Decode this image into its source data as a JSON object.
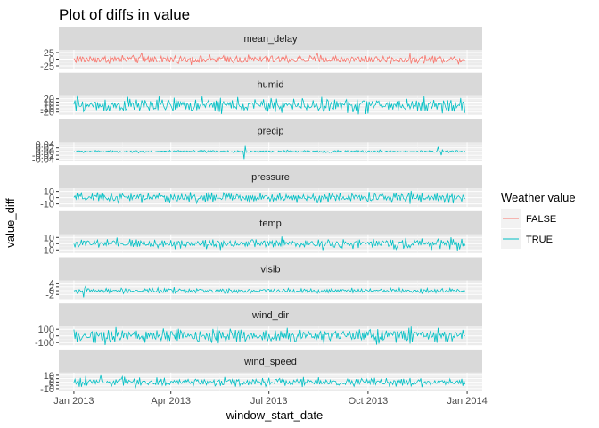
{
  "chart_data": {
    "type": "line",
    "title": "Plot of diffs in value",
    "xlabel": "window_start_date",
    "ylabel": "value_diff",
    "x_tick_labels": [
      "Jan 2013",
      "Apr 2013",
      "Jul 2013",
      "Oct 2013",
      "Jan 2014"
    ],
    "x_ticks": [
      "2013-01-01",
      "2013-04-01",
      "2013-07-01",
      "2013-10-01",
      "2014-01-01"
    ],
    "xlim": [
      "2012-12-18",
      "2014-01-15"
    ],
    "x_start": "2013-01-01",
    "x_end": "2013-12-30",
    "legend": {
      "title": "Weather value",
      "placement": "right",
      "entries": [
        {
          "label": "FALSE",
          "color": "#F8766D"
        },
        {
          "label": "TRUE",
          "color": "#00BFC4"
        }
      ]
    },
    "grid": true,
    "panels": [
      {
        "label": "mean_delay",
        "group": "FALSE",
        "ylim": [
          -35,
          35
        ],
        "y_ticks": [
          -25,
          0,
          25
        ],
        "y_tick_labels": [
          "-25",
          "0",
          "25"
        ],
        "amplitude": 10,
        "spikes": [
          {
            "date": "2013-03-05",
            "value": -32
          },
          {
            "date": "2013-03-05",
            "value": 25
          },
          {
            "date": "2013-08-15",
            "value": 22
          }
        ]
      },
      {
        "label": "humid",
        "group": "TRUE",
        "ylim": [
          -28,
          28
        ],
        "y_ticks": [
          -20,
          -10,
          0,
          10,
          20
        ],
        "y_tick_labels": [
          "-20",
          "-10",
          "0",
          "10",
          "20"
        ],
        "amplitude": 14,
        "spikes": [
          {
            "date": "2013-01-05",
            "value": 18
          }
        ]
      },
      {
        "label": "precip",
        "group": "TRUE",
        "ylim": [
          -0.05,
          0.05
        ],
        "y_ticks": [
          -0.04,
          -0.02,
          0,
          0.02,
          0.04
        ],
        "y_tick_labels": [
          "-0.04",
          "-0.02",
          "0.00",
          "0.02",
          "0.04"
        ],
        "amplitude": 0.004,
        "spikes": [
          {
            "date": "2013-06-08",
            "value": -0.04
          },
          {
            "date": "2013-06-09",
            "value": 0.03
          },
          {
            "date": "2013-12-05",
            "value": 0.025
          },
          {
            "date": "2013-12-08",
            "value": -0.02
          }
        ]
      },
      {
        "label": "pressure",
        "group": "TRUE",
        "ylim": [
          -15,
          15
        ],
        "y_ticks": [
          -10,
          0,
          10
        ],
        "y_tick_labels": [
          "-10",
          "0",
          "10"
        ],
        "amplitude": 5,
        "spikes": [
          {
            "date": "2013-11-10",
            "value": 11
          }
        ]
      },
      {
        "label": "temp",
        "group": "TRUE",
        "ylim": [
          -15,
          15
        ],
        "y_ticks": [
          -10,
          0,
          10
        ],
        "y_tick_labels": [
          "-10",
          "0",
          "10"
        ],
        "amplitude": 5,
        "spikes": [
          {
            "date": "2013-12-25",
            "value": -9
          }
        ]
      },
      {
        "label": "visib",
        "group": "TRUE",
        "ylim": [
          -4.5,
          5.5
        ],
        "y_ticks": [
          -2,
          0,
          2,
          4
        ],
        "y_tick_labels": [
          "-2",
          "0",
          "2",
          "4"
        ],
        "amplitude": 0.8,
        "spikes": [
          {
            "date": "2013-01-10",
            "value": -3.5
          },
          {
            "date": "2013-01-12",
            "value": 2.5
          }
        ]
      },
      {
        "label": "wind_dir",
        "group": "TRUE",
        "ylim": [
          -140,
          140
        ],
        "y_ticks": [
          -100,
          0,
          100
        ],
        "y_tick_labels": [
          "-100",
          "0",
          "100"
        ],
        "amplitude": 70,
        "spikes": []
      },
      {
        "label": "wind_speed",
        "group": "TRUE",
        "ylim": [
          -14,
          14
        ],
        "y_ticks": [
          -10,
          -5,
          0,
          5,
          10
        ],
        "y_tick_labels": [
          "-10",
          "-5",
          "0",
          "5",
          "10"
        ],
        "amplitude": 4,
        "spikes": [
          {
            "date": "2013-01-26",
            "value": 10
          },
          {
            "date": "2013-02-15",
            "value": 8
          }
        ]
      }
    ]
  }
}
